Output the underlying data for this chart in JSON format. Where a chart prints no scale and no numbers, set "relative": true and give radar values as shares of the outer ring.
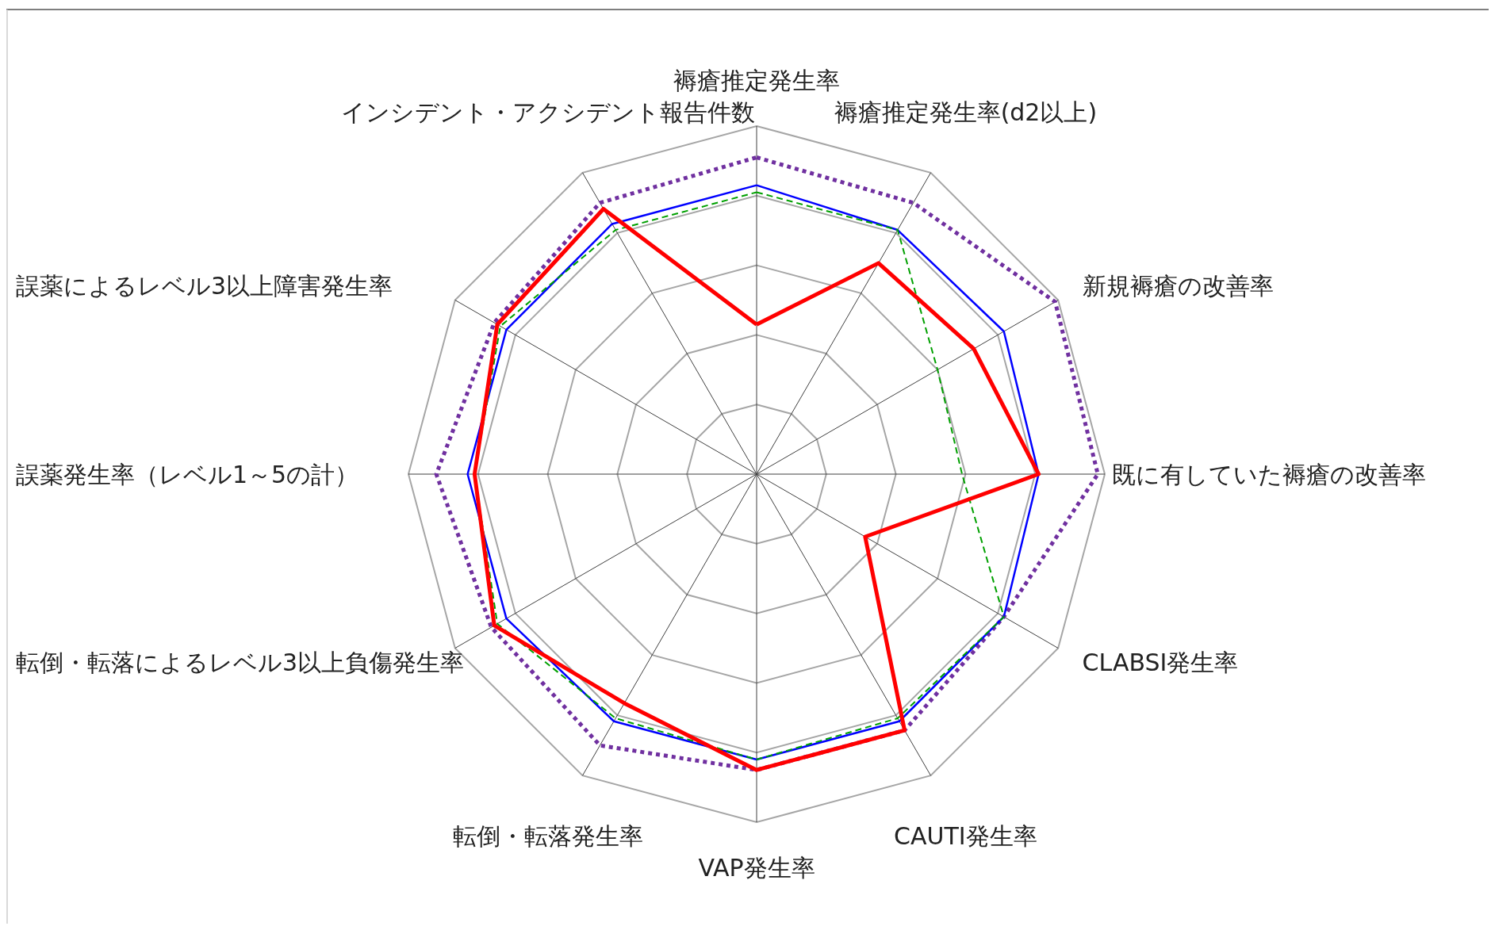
{
  "chart_data": {
    "type": "radar",
    "relative": true,
    "grid": true,
    "marker": "none",
    "categories": [
      "褥瘡推定発生率",
      "褥瘡推定発生率(d2以上)",
      "新規褥瘡の改善率",
      "既に有していた褥瘡の改善率",
      "CLABSI発生率",
      "CAUTI発生率",
      "VAP発生率",
      "転倒・転落発生率",
      "転倒・転落によるレベル3以上負傷発生率",
      "誤薬発生率（レベル1～5の計）",
      "誤薬によるレベル3以上障害発生率",
      "インシデント・アクシデント報告件数"
    ],
    "series": [
      {
        "color": "#7030a0",
        "line_style": "dotted",
        "values": [
          0.91,
          0.9,
          0.99,
          0.98,
          0.82,
          0.85,
          0.85,
          0.9,
          0.88,
          0.92,
          0.87,
          0.9
        ]
      },
      {
        "color": "#0000ff",
        "line_style": "solid",
        "values": [
          0.83,
          0.81,
          0.82,
          0.81,
          0.82,
          0.82,
          0.82,
          0.82,
          0.83,
          0.83,
          0.83,
          0.83
        ]
      },
      {
        "color": "#00a000",
        "line_style": "dashed",
        "values": [
          0.81,
          0.81,
          0.6,
          0.59,
          0.82,
          0.81,
          0.82,
          0.81,
          0.86,
          0.81,
          0.85,
          0.81
        ]
      },
      {
        "color": "#ff0000",
        "line_style": "solid",
        "values": [
          0.43,
          0.7,
          0.72,
          0.81,
          0.36,
          0.85,
          0.85,
          0.76,
          0.87,
          0.81,
          0.86,
          0.88
        ]
      }
    ]
  }
}
